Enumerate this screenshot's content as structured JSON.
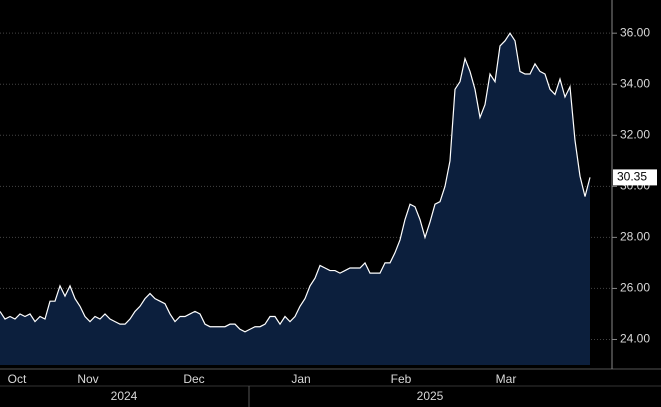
{
  "chart_data": {
    "type": "area",
    "values": [
      25.1,
      24.8,
      24.9,
      24.8,
      25.0,
      24.9,
      25.0,
      24.7,
      24.9,
      24.8,
      25.5,
      25.5,
      26.1,
      25.7,
      26.1,
      25.6,
      25.3,
      24.9,
      24.7,
      24.9,
      24.8,
      25.0,
      24.8,
      24.7,
      24.6,
      24.6,
      24.8,
      25.1,
      25.3,
      25.6,
      25.8,
      25.6,
      25.5,
      25.4,
      25.0,
      24.7,
      24.9,
      24.9,
      25.0,
      25.1,
      25.0,
      24.6,
      24.5,
      24.5,
      24.5,
      24.5,
      24.6,
      24.6,
      24.4,
      24.3,
      24.4,
      24.5,
      24.5,
      24.6,
      24.9,
      24.9,
      24.6,
      24.9,
      24.7,
      24.9,
      25.3,
      25.6,
      26.1,
      26.4,
      26.9,
      26.8,
      26.7,
      26.7,
      26.6,
      26.7,
      26.8,
      26.8,
      26.8,
      27.0,
      26.6,
      26.6,
      26.6,
      27.0,
      27.0,
      27.4,
      27.9,
      28.7,
      29.3,
      29.2,
      28.7,
      28.0,
      28.6,
      29.3,
      29.4,
      30.0,
      31.0,
      33.8,
      34.1,
      35.0,
      34.5,
      33.8,
      32.7,
      33.2,
      34.4,
      34.1,
      35.5,
      35.7,
      36.0,
      35.7,
      34.5,
      34.4,
      34.4,
      34.8,
      34.5,
      34.4,
      33.8,
      33.6,
      34.2,
      33.5,
      33.9,
      31.8,
      30.4,
      29.6,
      30.35
    ],
    "color": "#0c1f3d",
    "line_color": "#ffffff",
    "xlim": [
      0,
      122
    ],
    "xticks": [
      {
        "value": 3.4,
        "label": "Oct"
      },
      {
        "value": 17.6,
        "label": "Nov"
      },
      {
        "value": 38.8,
        "label": "Dec"
      },
      {
        "value": 60.2,
        "label": "Jan"
      },
      {
        "value": 80.2,
        "label": "Feb"
      },
      {
        "value": 101.2,
        "label": "Mar"
      }
    ],
    "year_ticks": [
      {
        "value": 24.8,
        "label": "2024"
      },
      {
        "value": 86,
        "label": "2025"
      }
    ],
    "ylim": [
      23,
      37.3
    ],
    "yticks": [
      {
        "value": 24,
        "label": "24.00"
      },
      {
        "value": 26,
        "label": "26.00"
      },
      {
        "value": 28,
        "label": "28.00"
      },
      {
        "value": 30,
        "label": "30.00"
      },
      {
        "value": 32,
        "label": "32.00"
      },
      {
        "value": 34,
        "label": "34.00"
      },
      {
        "value": 36,
        "label": "36.00"
      }
    ],
    "grid": true
  }
}
